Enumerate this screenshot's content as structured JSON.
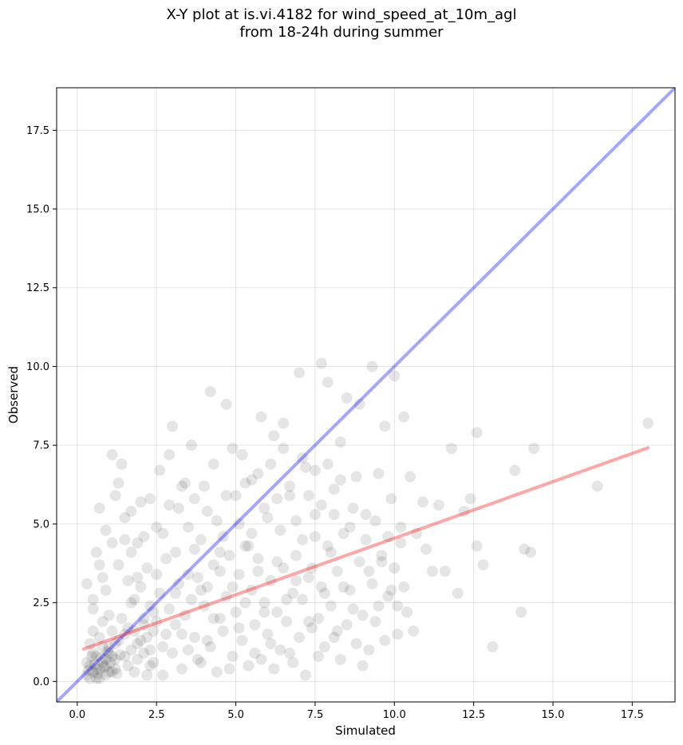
{
  "chart_data": {
    "type": "scatter",
    "title_line1": "X-Y plot at is.vi.4182 for wind_speed_at_10m_agl",
    "title_line2": "from 18-24h during summer",
    "xlabel": "Simulated",
    "ylabel": "Observed",
    "xlim": [
      -0.65,
      18.85
    ],
    "ylim": [
      -0.65,
      18.85
    ],
    "xticks": [
      0.0,
      2.5,
      5.0,
      7.5,
      10.0,
      12.5,
      15.0,
      17.5
    ],
    "yticks": [
      0.0,
      2.5,
      5.0,
      7.5,
      10.0,
      12.5,
      15.0,
      17.5
    ],
    "xtick_labels": [
      "0.0",
      "2.5",
      "5.0",
      "7.5",
      "10.0",
      "12.5",
      "15.0",
      "17.5"
    ],
    "ytick_labels": [
      "0.0",
      "2.5",
      "5.0",
      "7.5",
      "10.0",
      "12.5",
      "15.0",
      "17.5"
    ],
    "grid": true,
    "point_color": "#000000",
    "identity_line_color": "#0000ff",
    "fit_line_color": "#ff0000",
    "identity_line": {
      "x": [
        -0.65,
        18.85
      ],
      "y": [
        -0.65,
        18.85
      ]
    },
    "fit_line": {
      "x": [
        0.2,
        18.0
      ],
      "y": [
        1.03,
        7.42
      ]
    },
    "points": [
      [
        0.3,
        0.2
      ],
      [
        0.4,
        0.5
      ],
      [
        0.5,
        0.3
      ],
      [
        0.6,
        0.8
      ],
      [
        0.7,
        0.4
      ],
      [
        0.8,
        0.6
      ],
      [
        0.9,
        0.2
      ],
      [
        1.0,
        0.9
      ],
      [
        1.1,
        0.3
      ],
      [
        1.2,
        0.7
      ],
      [
        0.3,
        3.1
      ],
      [
        0.5,
        2.3
      ],
      [
        0.6,
        4.1
      ],
      [
        0.7,
        5.5
      ],
      [
        0.8,
        3.3
      ],
      [
        0.9,
        4.8
      ],
      [
        1.0,
        2.1
      ],
      [
        1.1,
        7.2
      ],
      [
        1.2,
        5.9
      ],
      [
        1.3,
        6.3
      ],
      [
        1.4,
        6.9
      ],
      [
        1.5,
        4.5
      ],
      [
        1.6,
        3.2
      ],
      [
        1.7,
        5.4
      ],
      [
        1.8,
        2.6
      ],
      [
        1.9,
        4.4
      ],
      [
        2.0,
        5.7
      ],
      [
        2.1,
        1.8
      ],
      [
        2.2,
        3.6
      ],
      [
        2.3,
        0.5
      ],
      [
        2.4,
        2.2
      ],
      [
        2.5,
        4.9
      ],
      [
        2.6,
        6.7
      ],
      [
        2.7,
        1.1
      ],
      [
        2.8,
        3.9
      ],
      [
        2.9,
        7.2
      ],
      [
        3.0,
        8.1
      ],
      [
        3.1,
        2.8
      ],
      [
        3.2,
        5.5
      ],
      [
        3.3,
        1.5
      ],
      [
        3.4,
        6.3
      ],
      [
        3.5,
        3.4
      ],
      [
        3.6,
        7.5
      ],
      [
        3.7,
        4.2
      ],
      [
        3.8,
        0.7
      ],
      [
        3.9,
        2.9
      ],
      [
        4.0,
        6.2
      ],
      [
        4.1,
        1.3
      ],
      [
        4.2,
        9.2
      ],
      [
        4.3,
        3.7
      ],
      [
        4.4,
        5.1
      ],
      [
        4.5,
        2.0
      ],
      [
        4.6,
        4.6
      ],
      [
        4.7,
        8.8
      ],
      [
        4.8,
        0.4
      ],
      [
        4.9,
        3.0
      ],
      [
        5.0,
        5.9
      ],
      [
        5.1,
        1.7
      ],
      [
        5.2,
        7.2
      ],
      [
        5.3,
        2.5
      ],
      [
        5.4,
        4.3
      ],
      [
        5.5,
        6.4
      ],
      [
        5.6,
        0.9
      ],
      [
        5.7,
        3.5
      ],
      [
        5.8,
        8.4
      ],
      [
        5.9,
        2.2
      ],
      [
        6.0,
        5.2
      ],
      [
        6.1,
        1.2
      ],
      [
        6.2,
        7.8
      ],
      [
        6.3,
        3.8
      ],
      [
        6.4,
        4.8
      ],
      [
        6.5,
        8.2
      ],
      [
        6.6,
        2.6
      ],
      [
        6.7,
        5.9
      ],
      [
        6.8,
        0.6
      ],
      [
        6.9,
        3.2
      ],
      [
        7.0,
        9.8
      ],
      [
        7.1,
        4.5
      ],
      [
        7.2,
        6.8
      ],
      [
        7.3,
        1.9
      ],
      [
        7.4,
        3.6
      ],
      [
        7.5,
        5.3
      ],
      [
        7.6,
        0.8
      ],
      [
        7.7,
        10.1
      ],
      [
        7.8,
        2.8
      ],
      [
        7.9,
        9.5
      ],
      [
        8.0,
        4.1
      ],
      [
        8.1,
        6.1
      ],
      [
        8.2,
        1.6
      ],
      [
        8.3,
        7.6
      ],
      [
        8.4,
        3.0
      ],
      [
        8.5,
        9.0
      ],
      [
        8.6,
        4.9
      ],
      [
        8.7,
        2.3
      ],
      [
        8.8,
        6.5
      ],
      [
        8.9,
        8.8
      ],
      [
        9.0,
        0.5
      ],
      [
        9.1,
        5.3
      ],
      [
        9.2,
        3.5
      ],
      [
        9.3,
        10.0
      ],
      [
        9.4,
        1.9
      ],
      [
        9.5,
        6.6
      ],
      [
        9.6,
        4.0
      ],
      [
        9.7,
        8.1
      ],
      [
        9.8,
        2.7
      ],
      [
        9.9,
        5.8
      ],
      [
        10.0,
        9.7
      ],
      [
        10.1,
        1.5
      ],
      [
        10.2,
        4.4
      ],
      [
        10.3,
        8.4
      ],
      [
        10.4,
        2.2
      ],
      [
        10.5,
        6.5
      ],
      [
        10.6,
        1.6
      ],
      [
        10.7,
        4.7
      ],
      [
        10.9,
        5.7
      ],
      [
        11.0,
        4.2
      ],
      [
        11.2,
        3.5
      ],
      [
        11.4,
        5.6
      ],
      [
        11.6,
        3.5
      ],
      [
        11.8,
        7.4
      ],
      [
        12.0,
        2.8
      ],
      [
        12.2,
        5.4
      ],
      [
        12.4,
        5.8
      ],
      [
        12.6,
        7.9
      ],
      [
        12.6,
        4.3
      ],
      [
        12.8,
        3.7
      ],
      [
        13.1,
        1.1
      ],
      [
        13.8,
        6.7
      ],
      [
        14.0,
        2.2
      ],
      [
        14.1,
        4.2
      ],
      [
        14.3,
        4.1
      ],
      [
        14.4,
        7.4
      ],
      [
        16.4,
        6.2
      ],
      [
        18.0,
        8.2
      ],
      [
        0.4,
        1.2
      ],
      [
        0.5,
        1.6
      ],
      [
        0.6,
        0.1
      ],
      [
        0.7,
        1.4
      ],
      [
        0.8,
        1.9
      ],
      [
        0.9,
        0.5
      ],
      [
        1.0,
        1.1
      ],
      [
        1.1,
        1.6
      ],
      [
        1.2,
        0.4
      ],
      [
        1.3,
        1.3
      ],
      [
        1.4,
        2.0
      ],
      [
        1.5,
        0.8
      ],
      [
        1.6,
        1.7
      ],
      [
        1.7,
        2.5
      ],
      [
        1.8,
        0.3
      ],
      [
        1.9,
        1.2
      ],
      [
        2.0,
        3.0
      ],
      [
        2.1,
        0.9
      ],
      [
        2.2,
        1.4
      ],
      [
        2.3,
        2.4
      ],
      [
        2.4,
        0.6
      ],
      [
        2.5,
        1.9
      ],
      [
        2.6,
        2.8
      ],
      [
        2.7,
        0.2
      ],
      [
        2.8,
        1.5
      ],
      [
        2.9,
        2.3
      ],
      [
        3.0,
        0.9
      ],
      [
        3.1,
        1.8
      ],
      [
        3.2,
        3.1
      ],
      [
        3.3,
        0.4
      ],
      [
        3.4,
        2.1
      ],
      [
        3.5,
        1.0
      ],
      [
        3.6,
        2.6
      ],
      [
        3.7,
        1.4
      ],
      [
        3.8,
        3.3
      ],
      [
        3.9,
        0.6
      ],
      [
        4.0,
        2.4
      ],
      [
        4.1,
        3.0
      ],
      [
        4.2,
        1.1
      ],
      [
        4.3,
        2.0
      ],
      [
        4.4,
        0.3
      ],
      [
        4.5,
        3.5
      ],
      [
        4.6,
        1.6
      ],
      [
        4.7,
        2.7
      ],
      [
        4.8,
        4.0
      ],
      [
        4.9,
        0.8
      ],
      [
        5.0,
        2.2
      ],
      [
        5.1,
        3.4
      ],
      [
        5.2,
        1.3
      ],
      [
        5.3,
        4.3
      ],
      [
        5.4,
        0.5
      ],
      [
        5.5,
        2.9
      ],
      [
        5.6,
        1.8
      ],
      [
        5.7,
        3.9
      ],
      [
        5.8,
        0.7
      ],
      [
        5.9,
        2.5
      ],
      [
        6.0,
        1.5
      ],
      [
        6.1,
        3.2
      ],
      [
        6.2,
        0.4
      ],
      [
        6.3,
        2.2
      ],
      [
        6.4,
        1.0
      ],
      [
        6.5,
        3.6
      ],
      [
        6.6,
        1.9
      ],
      [
        6.7,
        0.9
      ],
      [
        6.8,
        2.8
      ],
      [
        6.9,
        4.0
      ],
      [
        7.0,
        1.4
      ],
      [
        7.1,
        2.6
      ],
      [
        7.2,
        0.2
      ],
      [
        7.3,
        3.3
      ],
      [
        7.4,
        1.7
      ],
      [
        7.5,
        4.6
      ],
      [
        7.6,
        2.0
      ],
      [
        7.7,
        3.0
      ],
      [
        7.8,
        1.1
      ],
      [
        7.9,
        4.3
      ],
      [
        8.0,
        2.4
      ],
      [
        8.1,
        1.4
      ],
      [
        8.2,
        3.5
      ],
      [
        8.3,
        0.7
      ],
      [
        8.4,
        4.7
      ],
      [
        8.5,
        1.8
      ],
      [
        8.6,
        2.9
      ],
      [
        8.7,
        5.5
      ],
      [
        8.8,
        1.2
      ],
      [
        8.9,
        3.8
      ],
      [
        9.0,
        2.1
      ],
      [
        9.1,
        4.5
      ],
      [
        9.2,
        1.0
      ],
      [
        9.3,
        3.1
      ],
      [
        9.4,
        5.1
      ],
      [
        9.5,
        2.4
      ],
      [
        9.6,
        3.8
      ],
      [
        9.7,
        1.3
      ],
      [
        9.8,
        4.6
      ],
      [
        9.9,
        2.9
      ],
      [
        10.0,
        3.6
      ],
      [
        10.1,
        2.4
      ],
      [
        10.2,
        4.9
      ],
      [
        10.3,
        3.0
      ],
      [
        0.5,
        2.6
      ],
      [
        0.7,
        3.7
      ],
      [
        0.9,
        2.9
      ],
      [
        1.1,
        4.4
      ],
      [
        1.3,
        3.7
      ],
      [
        1.5,
        5.2
      ],
      [
        1.7,
        4.1
      ],
      [
        1.9,
        3.3
      ],
      [
        2.1,
        4.6
      ],
      [
        2.3,
        5.8
      ],
      [
        2.5,
        3.4
      ],
      [
        2.7,
        4.7
      ],
      [
        2.9,
        5.6
      ],
      [
        3.1,
        4.1
      ],
      [
        3.3,
        6.2
      ],
      [
        3.5,
        4.9
      ],
      [
        3.7,
        5.8
      ],
      [
        3.9,
        4.5
      ],
      [
        4.1,
        5.4
      ],
      [
        4.3,
        6.9
      ],
      [
        4.5,
        4.1
      ],
      [
        4.7,
        5.9
      ],
      [
        4.9,
        7.4
      ],
      [
        5.1,
        5.0
      ],
      [
        5.3,
        6.3
      ],
      [
        5.5,
        4.7
      ],
      [
        5.7,
        6.6
      ],
      [
        5.9,
        5.5
      ],
      [
        6.1,
        6.9
      ],
      [
        6.3,
        5.8
      ],
      [
        6.5,
        7.4
      ],
      [
        6.7,
        6.2
      ],
      [
        6.9,
        5.1
      ],
      [
        7.1,
        7.1
      ],
      [
        7.3,
        5.9
      ],
      [
        7.5,
        6.7
      ],
      [
        7.7,
        5.6
      ],
      [
        7.9,
        6.9
      ],
      [
        8.1,
        5.3
      ],
      [
        8.3,
        6.4
      ],
      [
        0.3,
        0.6
      ],
      [
        0.4,
        0.1
      ],
      [
        0.5,
        0.9
      ],
      [
        0.6,
        0.4
      ],
      [
        0.7,
        0.1
      ],
      [
        0.8,
        1.1
      ],
      [
        0.9,
        0.7
      ],
      [
        1.0,
        0.3
      ],
      [
        1.1,
        0.8
      ],
      [
        1.2,
        1.2
      ],
      [
        0.35,
        0.35
      ],
      [
        0.55,
        0.55
      ],
      [
        0.75,
        0.75
      ],
      [
        0.95,
        0.95
      ],
      [
        0.45,
        0.8
      ],
      [
        0.65,
        0.25
      ],
      [
        0.85,
        0.45
      ],
      [
        1.05,
        0.6
      ],
      [
        1.25,
        0.25
      ],
      [
        1.35,
        0.85
      ],
      [
        1.5,
        1.5
      ],
      [
        1.6,
        0.5
      ],
      [
        1.7,
        1.0
      ],
      [
        1.8,
        1.6
      ],
      [
        1.9,
        0.7
      ],
      [
        2.0,
        1.3
      ],
      [
        2.1,
        2.0
      ],
      [
        2.2,
        0.2
      ],
      [
        2.3,
        1.0
      ],
      [
        2.4,
        1.6
      ]
    ]
  }
}
